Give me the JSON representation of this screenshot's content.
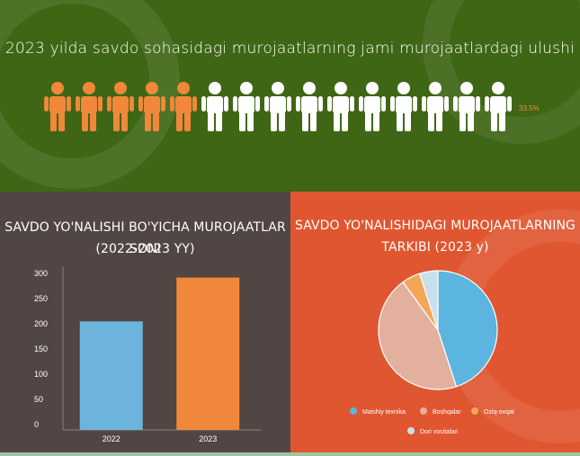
{
  "top": {
    "title": "2023 yilda savdo sohasidagi murojaatlarning jami murojaatlardagi ulushi",
    "percent_label": "33.5%",
    "people_total": 15,
    "people_highlighted": 5,
    "colors": {
      "background": "#3f6615",
      "highlight": "#f0873a",
      "normal": "#ffffff"
    }
  },
  "left_panel": {
    "title_line1": "SAVDO YO'NALISHI BO'YICHA MUROJAATLAR SONI",
    "title_line2": "(2022-2023 YY)",
    "background": "#514643"
  },
  "right_panel": {
    "title_line1": "SAVDO YO'NALISHIDAGI MUROJAATLARNING",
    "title_line2": "TARKIBI (2023 y)",
    "background": "#e05630"
  },
  "chart_data": [
    {
      "type": "bar",
      "categories": [
        "2022",
        "2023"
      ],
      "values": [
        203,
        290
      ],
      "colors": [
        "#6cb4dc",
        "#f0873a"
      ],
      "ylim": [
        0,
        300
      ],
      "yticks": [
        0,
        50,
        100,
        150,
        200,
        250,
        300
      ],
      "title": "SAVDO YO'NALISHI BO'YICHA MUROJAATLAR SONI (2022-2023 YY)",
      "grid": false
    },
    {
      "type": "pie",
      "labels": [
        "Maishiy texnika",
        "Boshqalar",
        "Oziq-ovqat",
        "Dori vositalari"
      ],
      "values": [
        45,
        45,
        5,
        5
      ],
      "colors": [
        "#5bb5df",
        "#e3b09e",
        "#f4a657",
        "#c8e0ea"
      ],
      "legend_placement": "bottom",
      "title": "SAVDO YO'NALISHIDAGI MUROJAATLARNING TARKIBI (2023 y)"
    }
  ]
}
